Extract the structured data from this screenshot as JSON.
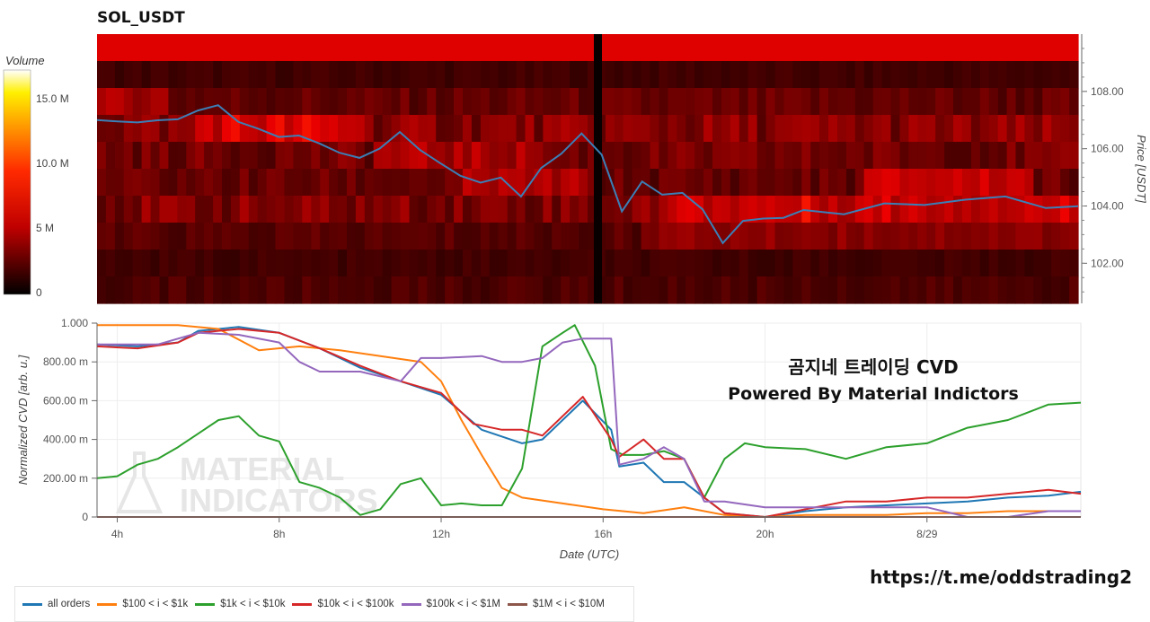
{
  "title": "SOL_USDT",
  "colorbar": {
    "label": "Volume",
    "ticks": [
      "15.0 M",
      "10.0 M",
      "5 M",
      "0"
    ]
  },
  "heatmap_axis": {
    "label": "Price [USDT]",
    "ticks": [
      "108.00",
      "106.00",
      "104.00",
      "102.00"
    ]
  },
  "cvd_axis": {
    "label": "Normalized CVD [arb. u.]",
    "ticks": [
      "1.000",
      "800.00 m",
      "600.00 m",
      "400.00 m",
      "200.00 m",
      "0"
    ]
  },
  "x_axis": {
    "label": "Date (UTC)",
    "ticks": [
      "4h",
      "8h",
      "12h",
      "16h",
      "20h",
      "8/29"
    ]
  },
  "watermark": [
    "MATERIAL",
    "INDICATORS"
  ],
  "overlay": {
    "line1": "곰지네 트레이딩 CVD",
    "line2": "Powered By Material Indictors"
  },
  "url": "https://t.me/oddstrading2",
  "legend": [
    {
      "name": "all orders",
      "color": "#1f77b4"
    },
    {
      "name": "$100 < i < $1k",
      "color": "#ff7f0e"
    },
    {
      "name": "$1k < i < $10k",
      "color": "#2ca02c"
    },
    {
      "name": "$10k < i < $100k",
      "color": "#d62728"
    },
    {
      "name": "$100k < i < $1M",
      "color": "#9467bd"
    },
    {
      "name": "$1M < i < $10M",
      "color": "#8c564b"
    }
  ],
  "chart_data": [
    {
      "type": "heatmap",
      "title": "SOL_USDT",
      "xlabel": "",
      "ylabel": "Price [USDT]",
      "xlim": [
        3.5,
        27.8
      ],
      "ylim": [
        100.6,
        110.0
      ],
      "colorbar": {
        "label": "Volume",
        "range": [
          0,
          17.5
        ],
        "units": "M"
      },
      "price_line": {
        "color": "#3b7fb6",
        "x": [
          3.5,
          4.0,
          4.5,
          5.0,
          5.5,
          6.0,
          6.5,
          7.0,
          7.5,
          8.0,
          8.5,
          9.0,
          9.5,
          10.0,
          10.5,
          11.0,
          11.5,
          12.0,
          12.5,
          13.0,
          13.5,
          14.0,
          14.5,
          15.0,
          15.5,
          16.0,
          16.5,
          17.0,
          17.5,
          18.0,
          18.5,
          19.0,
          19.5,
          20.0,
          20.5,
          21.0,
          22.0,
          23.0,
          24.0,
          25.0,
          26.0,
          27.0,
          27.8
        ],
        "y": [
          107.0,
          106.9,
          107.0,
          106.9,
          107.1,
          107.3,
          107.5,
          107.0,
          106.6,
          106.5,
          106.4,
          106.2,
          105.9,
          105.6,
          106.1,
          106.5,
          106.0,
          105.5,
          105.0,
          104.9,
          104.9,
          104.4,
          105.3,
          105.8,
          106.6,
          105.7,
          103.9,
          104.8,
          104.4,
          104.5,
          103.8,
          102.8,
          103.4,
          103.6,
          103.6,
          103.8,
          103.8,
          104.0,
          104.1,
          104.2,
          104.3,
          104.0,
          103.9
        ]
      }
    },
    {
      "type": "line",
      "xlabel": "Date (UTC)",
      "ylabel": "Normalized CVD [arb. u.]",
      "xlim": [
        3.5,
        27.8
      ],
      "ylim": [
        0,
        1.0
      ],
      "x_ticks": [
        "4h",
        "8h",
        "12h",
        "16h",
        "20h",
        "8/29"
      ],
      "series": [
        {
          "name": "all orders",
          "color": "#1f77b4",
          "x": [
            3.5,
            4.5,
            5.5,
            6.0,
            7.0,
            8.0,
            9.0,
            10.0,
            11.0,
            12.0,
            13.0,
            14.0,
            14.5,
            15.5,
            16.2,
            16.4,
            17.0,
            17.5,
            18.0,
            18.5,
            19.0,
            20.0,
            21.0,
            22.0,
            23.0,
            24.0,
            25.0,
            26.0,
            27.0,
            27.8
          ],
          "y": [
            0.89,
            0.88,
            0.9,
            0.96,
            0.98,
            0.95,
            0.87,
            0.77,
            0.7,
            0.63,
            0.45,
            0.38,
            0.4,
            0.6,
            0.45,
            0.26,
            0.28,
            0.18,
            0.18,
            0.1,
            0.02,
            0.0,
            0.03,
            0.05,
            0.06,
            0.07,
            0.08,
            0.1,
            0.11,
            0.13
          ]
        },
        {
          "name": "$100 < i < $1k",
          "color": "#ff7f0e",
          "x": [
            3.5,
            4.5,
            5.5,
            6.5,
            7.5,
            8.5,
            9.5,
            10.5,
            11.5,
            12.0,
            12.5,
            13.0,
            13.5,
            14.0,
            15.0,
            16.0,
            17.0,
            18.0,
            19.0,
            20.0,
            21.0,
            22.0,
            23.0,
            24.0,
            25.0,
            26.0,
            27.0,
            27.8
          ],
          "y": [
            0.99,
            0.99,
            0.99,
            0.97,
            0.86,
            0.88,
            0.86,
            0.83,
            0.8,
            0.7,
            0.5,
            0.32,
            0.15,
            0.1,
            0.07,
            0.04,
            0.02,
            0.05,
            0.01,
            0.0,
            0.01,
            0.01,
            0.01,
            0.02,
            0.02,
            0.03,
            0.03,
            0.03
          ]
        },
        {
          "name": "$1k < i < $10k",
          "color": "#2ca02c",
          "x": [
            3.5,
            4.0,
            4.5,
            5.0,
            5.5,
            6.0,
            6.5,
            7.0,
            7.5,
            8.0,
            8.5,
            9.0,
            9.5,
            10.0,
            10.5,
            11.0,
            11.5,
            12.0,
            12.5,
            13.0,
            13.5,
            14.0,
            14.5,
            15.0,
            15.3,
            15.8,
            16.2,
            16.5,
            17.0,
            17.5,
            18.0,
            18.5,
            19.0,
            19.5,
            20.0,
            21.0,
            22.0,
            23.0,
            24.0,
            25.0,
            26.0,
            27.0,
            27.8
          ],
          "y": [
            0.2,
            0.21,
            0.27,
            0.3,
            0.36,
            0.43,
            0.5,
            0.52,
            0.42,
            0.39,
            0.18,
            0.15,
            0.1,
            0.01,
            0.04,
            0.17,
            0.2,
            0.06,
            0.07,
            0.06,
            0.06,
            0.25,
            0.88,
            0.95,
            0.99,
            0.78,
            0.35,
            0.32,
            0.32,
            0.34,
            0.3,
            0.1,
            0.3,
            0.38,
            0.36,
            0.35,
            0.3,
            0.36,
            0.38,
            0.46,
            0.5,
            0.58,
            0.59
          ]
        },
        {
          "name": "$10k < i < $100k",
          "color": "#d62728",
          "x": [
            3.5,
            4.5,
            5.5,
            6.0,
            7.0,
            8.0,
            9.0,
            10.0,
            11.0,
            12.0,
            12.8,
            13.5,
            14.0,
            14.5,
            15.5,
            16.2,
            16.4,
            17.0,
            17.5,
            18.0,
            18.5,
            19.0,
            20.0,
            21.0,
            22.0,
            23.0,
            24.0,
            25.0,
            26.0,
            27.0,
            27.8
          ],
          "y": [
            0.88,
            0.87,
            0.9,
            0.95,
            0.97,
            0.95,
            0.87,
            0.78,
            0.7,
            0.64,
            0.48,
            0.45,
            0.45,
            0.42,
            0.62,
            0.4,
            0.31,
            0.4,
            0.3,
            0.3,
            0.1,
            0.02,
            0.0,
            0.04,
            0.08,
            0.08,
            0.1,
            0.1,
            0.12,
            0.14,
            0.12
          ]
        },
        {
          "name": "$100k < i < $1M",
          "color": "#9467bd",
          "x": [
            3.5,
            5.0,
            6.0,
            7.0,
            8.0,
            8.5,
            9.0,
            10.0,
            11.0,
            11.5,
            12.0,
            13.0,
            13.5,
            14.0,
            14.5,
            15.0,
            15.5,
            16.0,
            16.2,
            16.4,
            17.0,
            17.5,
            18.0,
            18.5,
            19.0,
            20.0,
            21.0,
            22.0,
            23.0,
            24.0,
            25.0,
            26.0,
            27.0,
            27.8
          ],
          "y": [
            0.89,
            0.89,
            0.95,
            0.94,
            0.9,
            0.8,
            0.75,
            0.75,
            0.7,
            0.82,
            0.82,
            0.83,
            0.8,
            0.8,
            0.82,
            0.9,
            0.92,
            0.92,
            0.92,
            0.27,
            0.3,
            0.36,
            0.3,
            0.08,
            0.08,
            0.05,
            0.05,
            0.05,
            0.05,
            0.05,
            0.0,
            0.0,
            0.03,
            0.03
          ]
        },
        {
          "name": "$1M < i < $10M",
          "color": "#8c564b",
          "x": [
            3.5,
            27.8
          ],
          "y": [
            0.0,
            0.0
          ]
        }
      ]
    }
  ]
}
